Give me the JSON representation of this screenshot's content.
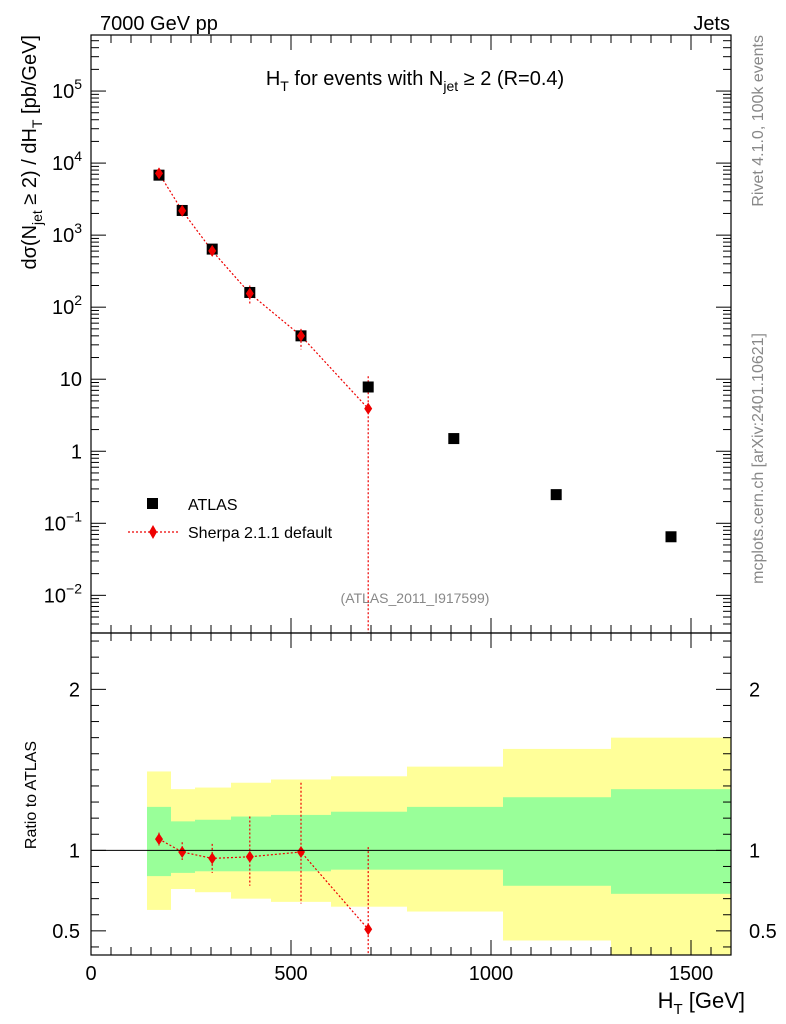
{
  "header": {
    "left": "7000 GeV pp",
    "right": "Jets"
  },
  "side_text": {
    "rivet": "Rivet 4.1.0,  100k events",
    "mcplots": "mcplots.cern.ch [arXiv:2401.10621]"
  },
  "watermark": "(ATLAS_2011_I917599)",
  "colors": {
    "data": "#000000",
    "mc": "#ee0000",
    "band_inner": "#99ff99",
    "band_outer": "#ffff99"
  },
  "chart_data": [
    {
      "type": "scatter",
      "name": "main",
      "title": {
        "main": "H",
        "sub1": "T",
        "mid": " for events with N",
        "sub2": "jet",
        "rest": " ≥ 2 (R=0.4)"
      },
      "ylabel": {
        "p1": "dσ(N",
        "s1": "jet",
        "p2": " ≥ 2) / dH",
        "s2": "T",
        "p3": " [pb/GeV]"
      },
      "xlim": [
        0,
        1600
      ],
      "ylim": [
        0.003,
        600000
      ],
      "yscale": "log",
      "legend_position": "bottom-left",
      "yticks": [
        {
          "v": 0.01,
          "base": "10",
          "exp": "−2"
        },
        {
          "v": 0.1,
          "base": "10",
          "exp": "−1"
        },
        {
          "v": 1,
          "base": "1",
          "exp": ""
        },
        {
          "v": 10,
          "base": "10",
          "exp": ""
        },
        {
          "v": 100,
          "base": "10",
          "exp": "2"
        },
        {
          "v": 1000,
          "base": "10",
          "exp": "3"
        },
        {
          "v": 10000,
          "base": "10",
          "exp": "4"
        },
        {
          "v": 100000,
          "base": "10",
          "exp": "5"
        }
      ],
      "series": [
        {
          "name": "ATLAS",
          "kind": "data",
          "x": [
            170,
            228,
            303,
            397,
            525,
            693,
            907,
            1163,
            1450
          ],
          "y": [
            6800,
            2200,
            640,
            160,
            40,
            7.8,
            1.5,
            0.25,
            0.065
          ]
        },
        {
          "name": "Sherpa 2.1.1 default",
          "kind": "mc",
          "x": [
            170,
            228,
            303,
            397,
            525,
            693
          ],
          "y": [
            7200,
            2180,
            605,
            155,
            40,
            3.9
          ],
          "yerr_lo": [
            6300,
            1950,
            520,
            110,
            26,
            0.003
          ],
          "yerr_hi": [
            8100,
            2400,
            700,
            200,
            50,
            11
          ]
        }
      ]
    },
    {
      "type": "scatter",
      "name": "ratio",
      "ylabel": "Ratio to ATLAS",
      "xlabel": {
        "main": "H",
        "sub": "T",
        "rest": " [GeV]"
      },
      "xlim": [
        0,
        1600
      ],
      "ylim": [
        0.35,
        2.35
      ],
      "xticks": [
        0,
        500,
        1000,
        1500
      ],
      "xtick_labels": [
        "0",
        "500",
        "1000",
        "1500"
      ],
      "yticks": [
        0.5,
        1,
        2
      ],
      "ytick_labels": [
        "0.5",
        "1",
        "2"
      ],
      "bands": {
        "edges": [
          140,
          200,
          260,
          350,
          450,
          600,
          790,
          1030,
          1300,
          1600
        ],
        "inner_lo": [
          0.84,
          0.86,
          0.87,
          0.87,
          0.87,
          0.88,
          0.88,
          0.78,
          0.73
        ],
        "inner_hi": [
          1.27,
          1.18,
          1.19,
          1.21,
          1.22,
          1.24,
          1.27,
          1.33,
          1.38
        ],
        "outer_lo": [
          0.63,
          0.76,
          0.74,
          0.7,
          0.68,
          0.65,
          0.62,
          0.44,
          0.32
        ],
        "outer_hi": [
          1.49,
          1.38,
          1.39,
          1.42,
          1.44,
          1.46,
          1.52,
          1.63,
          1.7
        ]
      },
      "series": [
        {
          "name": "Sherpa 2.1.1 default",
          "x": [
            170,
            228,
            303,
            397,
            525,
            693
          ],
          "y": [
            1.07,
            0.99,
            0.95,
            0.96,
            0.99,
            0.51
          ],
          "yerr_lo": [
            1.03,
            0.94,
            0.86,
            0.78,
            0.67,
            0.35
          ],
          "yerr_hi": [
            1.11,
            1.05,
            1.04,
            1.21,
            1.42,
            1.02
          ]
        }
      ]
    }
  ]
}
